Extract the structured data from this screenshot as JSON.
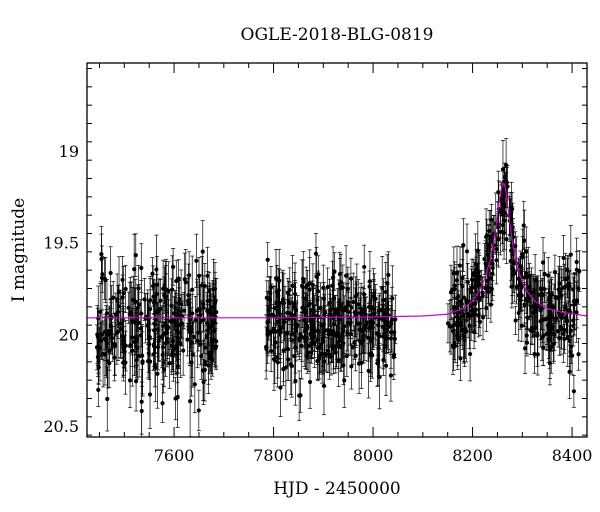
{
  "chart_data": {
    "type": "scatter",
    "title": "OGLE-2018-BLG-0819",
    "xlabel": "HJD - 2450000",
    "ylabel": "I magnitude",
    "xlim": [
      7425,
      8430
    ],
    "ylim": [
      20.56,
      18.52
    ],
    "y_inverted": true,
    "x_ticks": [
      7600,
      7800,
      8000,
      8200,
      8400
    ],
    "y_ticks": [
      19,
      19.5,
      20,
      20.5
    ],
    "x_tick_labels": [
      "7600",
      "7800",
      "8000",
      "8200",
      "8400"
    ],
    "y_tick_labels": [
      "19",
      "19.5",
      "20",
      "20.5"
    ],
    "grid": false,
    "marker_color": "#000000",
    "model_color": "#cc00cc",
    "baseline_mag": 19.91,
    "observing_seasons": [
      {
        "start": 7445,
        "end": 7685,
        "n_points": 300,
        "mean_mag": 19.98,
        "scatter": 0.16,
        "mean_error": 0.14
      },
      {
        "start": 7785,
        "end": 8045,
        "n_points": 340,
        "mean_mag": 19.94,
        "scatter": 0.14,
        "mean_error": 0.13
      },
      {
        "start": 8150,
        "end": 8415,
        "n_points": 340,
        "mean_mag": 19.86,
        "scatter": 0.13,
        "mean_error": 0.12
      }
    ],
    "series": [
      {
        "kind": "model",
        "x": [
          7430,
          7600,
          7800,
          8000,
          8100,
          8150,
          8180,
          8200,
          8220,
          8235,
          8245,
          8252,
          8258,
          8262,
          8266,
          8272,
          8280,
          8290,
          8305,
          8325,
          8350,
          8380,
          8430
        ],
        "y": [
          19.91,
          19.91,
          19.91,
          19.905,
          19.9,
          19.89,
          19.86,
          19.82,
          19.73,
          19.6,
          19.45,
          19.3,
          19.2,
          19.17,
          19.2,
          19.33,
          19.5,
          19.64,
          19.75,
          19.82,
          19.86,
          19.88,
          19.9
        ]
      }
    ]
  }
}
